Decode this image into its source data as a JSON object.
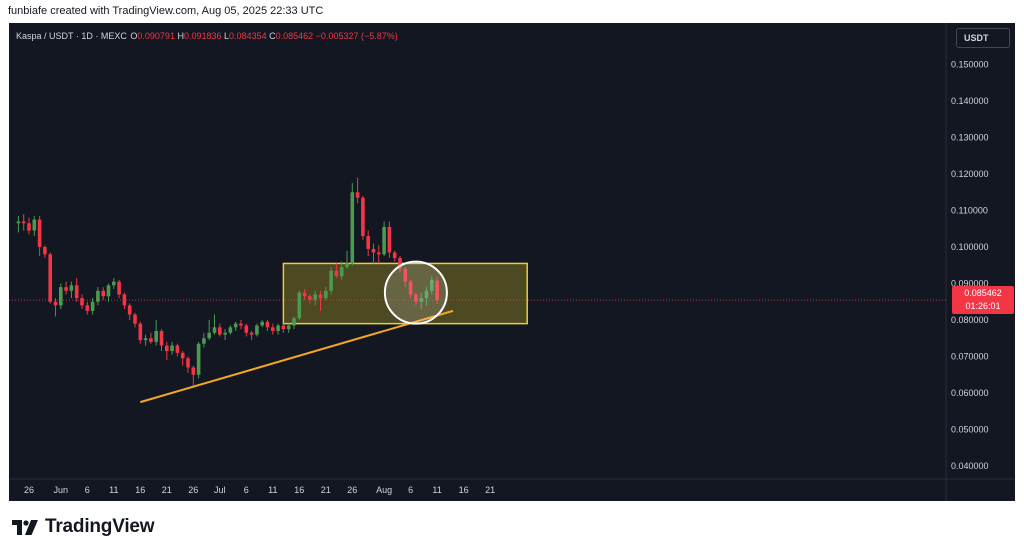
{
  "header": {
    "caption": "funbiafe created with TradingView.com, Aug 05, 2025 22:33 UTC"
  },
  "legend": {
    "symbol": "Kaspa / USDT · 1D · MEXC",
    "o_label": "O",
    "o_value": "0.090791",
    "h_label": "H",
    "h_value": "0.091836",
    "l_label": "L",
    "l_value": "0.084354",
    "c_label": "C",
    "c_value": "0.085462",
    "change": "−0.005327 (−5.87%)"
  },
  "currency_button": "USDT",
  "price_tag": {
    "price": "0.085462",
    "countdown": "01:26:01"
  },
  "brand": {
    "name": "TradingView"
  },
  "colors": {
    "up": "#4c9a4f",
    "down": "#f23645",
    "bg": "#131722",
    "zone_fill": "#7d7225",
    "zone_stroke": "#e9cd3b",
    "trendline": "#f5a623"
  },
  "chart_data": {
    "type": "candlestick",
    "symbol": "Kaspa / USDT",
    "interval": "1D",
    "exchange": "MEXC",
    "y_axis": {
      "ticks": [
        0.04,
        0.05,
        0.06,
        0.07,
        0.08,
        0.09,
        0.1,
        0.11,
        0.12,
        0.13,
        0.14,
        0.15
      ],
      "tick_labels": [
        "0.040000",
        "0.050000",
        "0.060000",
        "0.070000",
        "0.080000",
        "0.090000",
        "0.100000",
        "0.110000",
        "0.120000",
        "0.130000",
        "0.140000",
        "0.150000"
      ]
    },
    "x_axis": {
      "ticks": [
        {
          "label": "26",
          "date": "2025-05-26"
        },
        {
          "label": "Jun",
          "date": "2025-06-01"
        },
        {
          "label": "6",
          "date": "2025-06-06"
        },
        {
          "label": "11",
          "date": "2025-06-11"
        },
        {
          "label": "16",
          "date": "2025-06-16"
        },
        {
          "label": "21",
          "date": "2025-06-21"
        },
        {
          "label": "26",
          "date": "2025-06-26"
        },
        {
          "label": "Jul",
          "date": "2025-07-01"
        },
        {
          "label": "6",
          "date": "2025-07-06"
        },
        {
          "label": "11",
          "date": "2025-07-11"
        },
        {
          "label": "16",
          "date": "2025-07-16"
        },
        {
          "label": "21",
          "date": "2025-07-21"
        },
        {
          "label": "26",
          "date": "2025-07-26"
        },
        {
          "label": "Aug",
          "date": "2025-08-01"
        },
        {
          "label": "6",
          "date": "2025-08-06"
        },
        {
          "label": "11",
          "date": "2025-08-11"
        },
        {
          "label": "16",
          "date": "2025-08-16"
        },
        {
          "label": "21",
          "date": "2025-08-21"
        }
      ]
    },
    "candles": [
      {
        "date": "2025-05-24",
        "o": 0.1065,
        "h": 0.1085,
        "l": 0.104,
        "c": 0.107
      },
      {
        "date": "2025-05-25",
        "o": 0.107,
        "h": 0.109,
        "l": 0.1045,
        "c": 0.1065
      },
      {
        "date": "2025-05-26",
        "o": 0.1065,
        "h": 0.108,
        "l": 0.1035,
        "c": 0.1045
      },
      {
        "date": "2025-05-27",
        "o": 0.1045,
        "h": 0.1085,
        "l": 0.103,
        "c": 0.1075
      },
      {
        "date": "2025-05-28",
        "o": 0.1075,
        "h": 0.1085,
        "l": 0.0975,
        "c": 0.1
      },
      {
        "date": "2025-05-29",
        "o": 0.1,
        "h": 0.1005,
        "l": 0.097,
        "c": 0.098
      },
      {
        "date": "2025-05-30",
        "o": 0.098,
        "h": 0.0985,
        "l": 0.0845,
        "c": 0.085
      },
      {
        "date": "2025-05-31",
        "o": 0.085,
        "h": 0.086,
        "l": 0.081,
        "c": 0.084
      },
      {
        "date": "2025-06-01",
        "o": 0.084,
        "h": 0.09,
        "l": 0.083,
        "c": 0.089
      },
      {
        "date": "2025-06-02",
        "o": 0.089,
        "h": 0.0905,
        "l": 0.087,
        "c": 0.088
      },
      {
        "date": "2025-06-03",
        "o": 0.088,
        "h": 0.0905,
        "l": 0.086,
        "c": 0.0895
      },
      {
        "date": "2025-06-04",
        "o": 0.0895,
        "h": 0.0915,
        "l": 0.085,
        "c": 0.086
      },
      {
        "date": "2025-06-05",
        "o": 0.086,
        "h": 0.087,
        "l": 0.083,
        "c": 0.084
      },
      {
        "date": "2025-06-06",
        "o": 0.084,
        "h": 0.085,
        "l": 0.0815,
        "c": 0.0825
      },
      {
        "date": "2025-06-07",
        "o": 0.0825,
        "h": 0.086,
        "l": 0.0815,
        "c": 0.085
      },
      {
        "date": "2025-06-08",
        "o": 0.085,
        "h": 0.089,
        "l": 0.084,
        "c": 0.088
      },
      {
        "date": "2025-06-09",
        "o": 0.088,
        "h": 0.089,
        "l": 0.0855,
        "c": 0.0865
      },
      {
        "date": "2025-06-10",
        "o": 0.0865,
        "h": 0.09,
        "l": 0.085,
        "c": 0.0895
      },
      {
        "date": "2025-06-11",
        "o": 0.0895,
        "h": 0.0915,
        "l": 0.0885,
        "c": 0.0905
      },
      {
        "date": "2025-06-12",
        "o": 0.0905,
        "h": 0.091,
        "l": 0.086,
        "c": 0.087
      },
      {
        "date": "2025-06-13",
        "o": 0.087,
        "h": 0.0875,
        "l": 0.083,
        "c": 0.084
      },
      {
        "date": "2025-06-14",
        "o": 0.084,
        "h": 0.0845,
        "l": 0.08,
        "c": 0.0815
      },
      {
        "date": "2025-06-15",
        "o": 0.0815,
        "h": 0.082,
        "l": 0.078,
        "c": 0.079
      },
      {
        "date": "2025-06-16",
        "o": 0.079,
        "h": 0.0795,
        "l": 0.0735,
        "c": 0.0745
      },
      {
        "date": "2025-06-17",
        "o": 0.0745,
        "h": 0.076,
        "l": 0.073,
        "c": 0.075
      },
      {
        "date": "2025-06-18",
        "o": 0.075,
        "h": 0.0765,
        "l": 0.0735,
        "c": 0.074
      },
      {
        "date": "2025-06-19",
        "o": 0.074,
        "h": 0.08,
        "l": 0.073,
        "c": 0.077
      },
      {
        "date": "2025-06-20",
        "o": 0.077,
        "h": 0.0775,
        "l": 0.0715,
        "c": 0.073
      },
      {
        "date": "2025-06-21",
        "o": 0.073,
        "h": 0.074,
        "l": 0.069,
        "c": 0.0715
      },
      {
        "date": "2025-06-22",
        "o": 0.0715,
        "h": 0.074,
        "l": 0.0705,
        "c": 0.073
      },
      {
        "date": "2025-06-23",
        "o": 0.073,
        "h": 0.0735,
        "l": 0.07,
        "c": 0.071
      },
      {
        "date": "2025-06-24",
        "o": 0.071,
        "h": 0.0715,
        "l": 0.0675,
        "c": 0.0695
      },
      {
        "date": "2025-06-25",
        "o": 0.0695,
        "h": 0.07,
        "l": 0.0655,
        "c": 0.067
      },
      {
        "date": "2025-06-26",
        "o": 0.067,
        "h": 0.0675,
        "l": 0.062,
        "c": 0.065
      },
      {
        "date": "2025-06-27",
        "o": 0.065,
        "h": 0.074,
        "l": 0.064,
        "c": 0.0735
      },
      {
        "date": "2025-06-28",
        "o": 0.0735,
        "h": 0.0765,
        "l": 0.0725,
        "c": 0.075
      },
      {
        "date": "2025-06-29",
        "o": 0.075,
        "h": 0.08,
        "l": 0.0745,
        "c": 0.0765
      },
      {
        "date": "2025-06-30",
        "o": 0.0765,
        "h": 0.0815,
        "l": 0.076,
        "c": 0.078
      },
      {
        "date": "2025-07-01",
        "o": 0.078,
        "h": 0.079,
        "l": 0.0755,
        "c": 0.076
      },
      {
        "date": "2025-07-02",
        "o": 0.076,
        "h": 0.0775,
        "l": 0.0745,
        "c": 0.0765
      },
      {
        "date": "2025-07-03",
        "o": 0.0765,
        "h": 0.0785,
        "l": 0.076,
        "c": 0.078
      },
      {
        "date": "2025-07-04",
        "o": 0.078,
        "h": 0.0795,
        "l": 0.077,
        "c": 0.079
      },
      {
        "date": "2025-07-05",
        "o": 0.079,
        "h": 0.08,
        "l": 0.0775,
        "c": 0.0785
      },
      {
        "date": "2025-07-06",
        "o": 0.0785,
        "h": 0.079,
        "l": 0.0755,
        "c": 0.0765
      },
      {
        "date": "2025-07-07",
        "o": 0.0765,
        "h": 0.077,
        "l": 0.0745,
        "c": 0.076
      },
      {
        "date": "2025-07-08",
        "o": 0.076,
        "h": 0.079,
        "l": 0.0755,
        "c": 0.0785
      },
      {
        "date": "2025-07-09",
        "o": 0.0785,
        "h": 0.08,
        "l": 0.078,
        "c": 0.0795
      },
      {
        "date": "2025-07-10",
        "o": 0.0795,
        "h": 0.08,
        "l": 0.077,
        "c": 0.078
      },
      {
        "date": "2025-07-11",
        "o": 0.078,
        "h": 0.079,
        "l": 0.076,
        "c": 0.077
      },
      {
        "date": "2025-07-12",
        "o": 0.077,
        "h": 0.079,
        "l": 0.076,
        "c": 0.0785
      },
      {
        "date": "2025-07-13",
        "o": 0.0785,
        "h": 0.079,
        "l": 0.0765,
        "c": 0.0775
      },
      {
        "date": "2025-07-14",
        "o": 0.0775,
        "h": 0.079,
        "l": 0.0765,
        "c": 0.0785
      },
      {
        "date": "2025-07-15",
        "o": 0.0785,
        "h": 0.081,
        "l": 0.0775,
        "c": 0.0805
      },
      {
        "date": "2025-07-16",
        "o": 0.0805,
        "h": 0.088,
        "l": 0.08,
        "c": 0.0875
      },
      {
        "date": "2025-07-17",
        "o": 0.0875,
        "h": 0.0885,
        "l": 0.0855,
        "c": 0.0865
      },
      {
        "date": "2025-07-18",
        "o": 0.0865,
        "h": 0.087,
        "l": 0.0845,
        "c": 0.0855
      },
      {
        "date": "2025-07-19",
        "o": 0.0855,
        "h": 0.088,
        "l": 0.084,
        "c": 0.087
      },
      {
        "date": "2025-07-20",
        "o": 0.087,
        "h": 0.088,
        "l": 0.0825,
        "c": 0.086
      },
      {
        "date": "2025-07-21",
        "o": 0.086,
        "h": 0.089,
        "l": 0.0855,
        "c": 0.088
      },
      {
        "date": "2025-07-22",
        "o": 0.088,
        "h": 0.0945,
        "l": 0.087,
        "c": 0.0935
      },
      {
        "date": "2025-07-23",
        "o": 0.0935,
        "h": 0.0955,
        "l": 0.0915,
        "c": 0.092
      },
      {
        "date": "2025-07-24",
        "o": 0.092,
        "h": 0.096,
        "l": 0.091,
        "c": 0.0945
      },
      {
        "date": "2025-07-25",
        "o": 0.0945,
        "h": 0.099,
        "l": 0.094,
        "c": 0.0955
      },
      {
        "date": "2025-07-26",
        "o": 0.0955,
        "h": 0.1175,
        "l": 0.095,
        "c": 0.115
      },
      {
        "date": "2025-07-27",
        "o": 0.115,
        "h": 0.119,
        "l": 0.112,
        "c": 0.1135
      },
      {
        "date": "2025-07-28",
        "o": 0.1135,
        "h": 0.114,
        "l": 0.102,
        "c": 0.103
      },
      {
        "date": "2025-07-29",
        "o": 0.103,
        "h": 0.1045,
        "l": 0.0975,
        "c": 0.0995
      },
      {
        "date": "2025-07-30",
        "o": 0.0995,
        "h": 0.101,
        "l": 0.0955,
        "c": 0.0985
      },
      {
        "date": "2025-07-31",
        "o": 0.0985,
        "h": 0.1005,
        "l": 0.0955,
        "c": 0.098
      },
      {
        "date": "2025-08-01",
        "o": 0.098,
        "h": 0.107,
        "l": 0.0975,
        "c": 0.1055
      },
      {
        "date": "2025-08-02",
        "o": 0.1055,
        "h": 0.107,
        "l": 0.097,
        "c": 0.0985
      },
      {
        "date": "2025-08-03",
        "o": 0.0985,
        "h": 0.099,
        "l": 0.096,
        "c": 0.097
      },
      {
        "date": "2025-08-04",
        "o": 0.097,
        "h": 0.0975,
        "l": 0.093,
        "c": 0.094
      },
      {
        "date": "2025-08-05",
        "o": 0.094,
        "h": 0.0945,
        "l": 0.089,
        "c": 0.0905
      },
      {
        "date": "2025-08-06",
        "o": 0.0905,
        "h": 0.091,
        "l": 0.086,
        "c": 0.087
      },
      {
        "date": "2025-08-07",
        "o": 0.087,
        "h": 0.0875,
        "l": 0.084,
        "c": 0.085
      },
      {
        "date": "2025-08-08",
        "o": 0.085,
        "h": 0.0875,
        "l": 0.083,
        "c": 0.086
      },
      {
        "date": "2025-08-09",
        "o": 0.086,
        "h": 0.089,
        "l": 0.084,
        "c": 0.088
      },
      {
        "date": "2025-08-10",
        "o": 0.088,
        "h": 0.092,
        "l": 0.087,
        "c": 0.091
      },
      {
        "date": "2025-08-11",
        "o": 0.0908,
        "h": 0.0918,
        "l": 0.0844,
        "c": 0.0855
      }
    ],
    "annotations": {
      "zone": {
        "from": "2025-07-13",
        "to": "2025-08-28",
        "low": 0.079,
        "high": 0.0955
      },
      "trendline": {
        "from_date": "2025-06-16",
        "from_price": 0.0575,
        "to_date": "2025-08-14",
        "to_price": 0.0825
      },
      "circle": {
        "center_date": "2025-08-07",
        "center_price": 0.0875
      },
      "last_price_line": 0.085462
    }
  }
}
